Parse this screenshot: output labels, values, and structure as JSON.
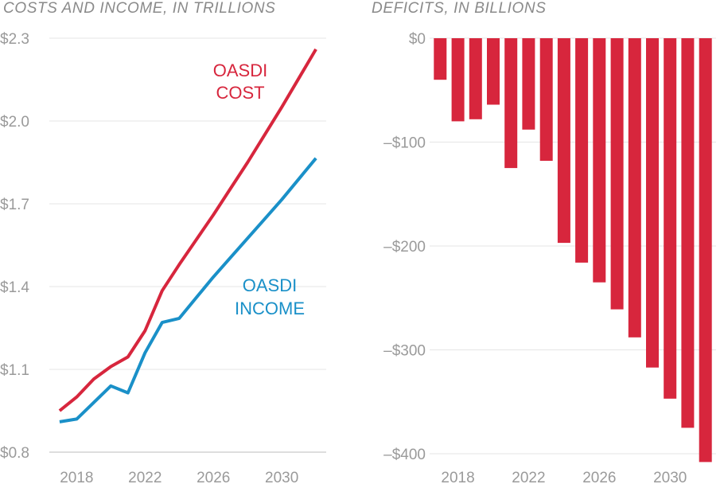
{
  "chart_data": [
    {
      "type": "line",
      "title": "COSTS AND INCOME, IN TRILLIONS",
      "ylim": [
        0.8,
        2.3
      ],
      "yticks": [
        "$2.3",
        "$2.0",
        "$1.7",
        "$1.4",
        "$1.1",
        "$0.8"
      ],
      "ytick_values": [
        2.3,
        2.0,
        1.7,
        1.4,
        1.1,
        0.8
      ],
      "xticks": [
        "2018",
        "2022",
        "2026",
        "2030"
      ],
      "xtick_values": [
        2018,
        2022,
        2026,
        2030
      ],
      "xlim": [
        2016.4,
        2032.6
      ],
      "grid": true,
      "x": [
        2017,
        2018,
        2019,
        2020,
        2021,
        2022,
        2023,
        2024,
        2025,
        2026,
        2027,
        2028,
        2029,
        2030,
        2031,
        2032
      ],
      "series": [
        {
          "name": "OASDI COST",
          "label_lines": [
            "OASDI",
            "COST"
          ],
          "color": "#d7263d",
          "values": [
            0.95,
            1.0,
            1.065,
            1.11,
            1.145,
            1.24,
            1.385,
            1.48,
            1.57,
            1.66,
            1.755,
            1.85,
            1.95,
            2.05,
            2.155,
            2.26
          ]
        },
        {
          "name": "OASDI INCOME",
          "label_lines": [
            "OASDI",
            "INCOME"
          ],
          "color": "#1a90c8",
          "values": [
            0.91,
            0.92,
            0.98,
            1.04,
            1.015,
            1.16,
            1.27,
            1.285,
            1.36,
            1.435,
            1.505,
            1.575,
            1.645,
            1.715,
            1.79,
            1.865
          ]
        }
      ]
    },
    {
      "type": "bar",
      "title": "DEFICITS, IN BILLIONS",
      "ylim": [
        -400,
        0
      ],
      "yticks": [
        "$0",
        "–$100",
        "–$200",
        "–$300",
        "–$400"
      ],
      "ytick_values": [
        0,
        -100,
        -200,
        -300,
        -400
      ],
      "xticks": [
        "2018",
        "2022",
        "2026",
        "2030"
      ],
      "xtick_values": [
        2018,
        2022,
        2026,
        2030
      ],
      "xlim": [
        2016.4,
        2032.6
      ],
      "grid": true,
      "color": "#d7263d",
      "x": [
        2017,
        2018,
        2019,
        2020,
        2021,
        2022,
        2023,
        2024,
        2025,
        2026,
        2027,
        2028,
        2029,
        2030,
        2031,
        2032
      ],
      "values": [
        -40,
        -80,
        -78,
        -64,
        -125,
        -88,
        -118,
        -197,
        -216,
        -235,
        -261,
        -288,
        -317,
        -347,
        -375,
        -408
      ]
    }
  ]
}
